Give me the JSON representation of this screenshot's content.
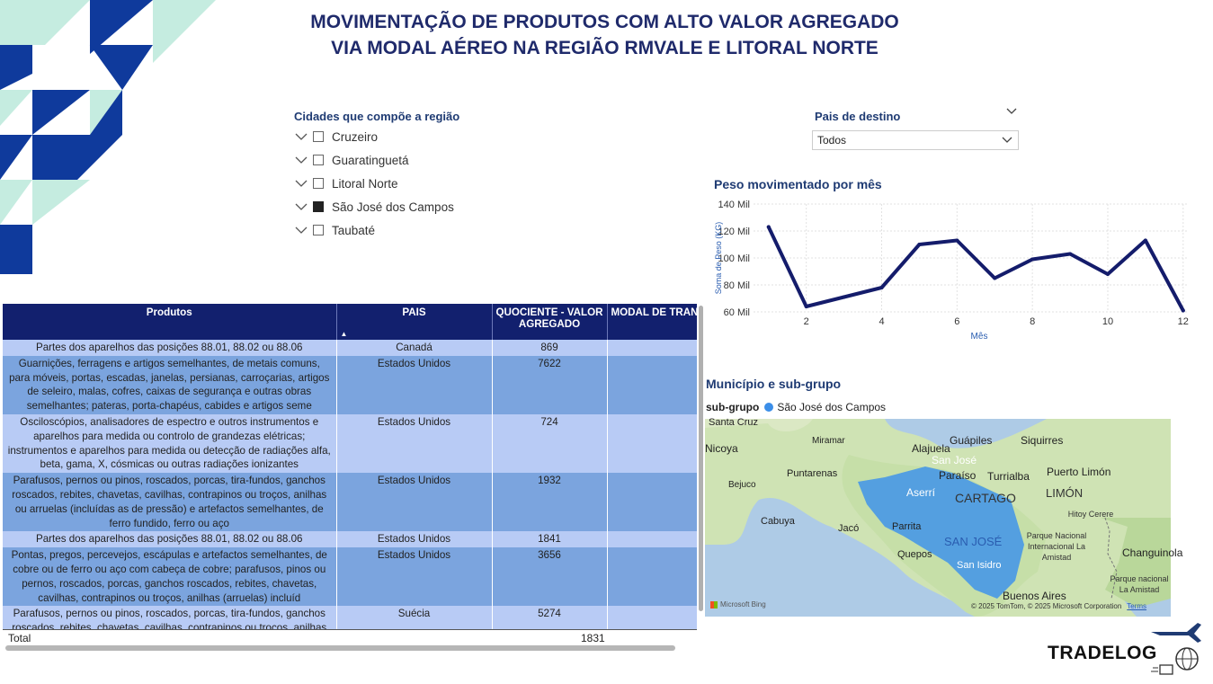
{
  "title": {
    "line1": "MOVIMENTAÇÃO DE PRODUTOS COM ALTO VALOR AGREGADO",
    "line2": "VIA MODAL AÉREO NA REGIÃO RMVALE E LITORAL NORTE"
  },
  "city_slicer": {
    "title": "Cidades que compõe a região",
    "items": [
      {
        "label": "Cruzeiro",
        "checked": false
      },
      {
        "label": "Guaratinguetá",
        "checked": false
      },
      {
        "label": "Litoral Norte",
        "checked": false
      },
      {
        "label": "São José dos Campos",
        "checked": true
      },
      {
        "label": "Taubaté",
        "checked": false
      }
    ]
  },
  "country_slicer": {
    "title": "Pais de destino",
    "selected": "Todos"
  },
  "line_chart": {
    "title": "Peso movimentado por mês",
    "ylabel": "Soma de Peso (KG)",
    "xlabel": "Mês",
    "color": "#141c6b"
  },
  "chart_data": {
    "type": "line",
    "title": "Peso movimentado por mês",
    "xlabel": "Mês",
    "ylabel": "Soma de Peso (KG)",
    "x": [
      1,
      2,
      3,
      4,
      5,
      6,
      7,
      8,
      9,
      10,
      11,
      12
    ],
    "values": [
      123,
      64,
      71,
      78,
      110,
      113,
      85,
      99,
      103,
      88,
      113,
      61
    ],
    "ylim": [
      60,
      140
    ],
    "xticks": [
      "2",
      "4",
      "6",
      "8",
      "10",
      "12"
    ],
    "yticks": [
      "140 Mil",
      "120 Mil",
      "100 Mil",
      "80 Mil",
      "60 Mil"
    ],
    "grid": true
  },
  "map_visual": {
    "title": "Município e sub-grupo",
    "legend_label": "sub-grupo",
    "legend_item": "São José dos Campos",
    "attribution": "© 2025 TomTom, © 2025 Microsoft Corporation",
    "terms": "Terms",
    "provider": "Microsoft Bing",
    "places": [
      "Santa Cruz",
      "Miramar",
      "Alajuela",
      "Guápiles",
      "Siquirres",
      "Nicoya",
      "San José",
      "Puntarenas",
      "Paraíso",
      "Turrialba",
      "Puerto Limón",
      "Bejuco",
      "Aserrí",
      "CARTAGO",
      "LIMÓN",
      "Hitoy Cerere",
      "Cabuya",
      "Jacó",
      "Parrita",
      "SAN JOSÉ",
      "Parque Nacional Internacional La Amistad",
      "Quepos",
      "San Isidro",
      "Changuinola",
      "Buenos Aires",
      "Parque nacional La Amistad"
    ]
  },
  "table": {
    "headers": [
      "Produtos",
      "PAIS",
      "QUOCIENTE - VALOR AGREGADO",
      "MODAL DE TRAN"
    ],
    "rows": [
      {
        "produto": "Partes dos aparelhos das posições 88.01, 88.02 ou 88.06",
        "pais": "Canadá",
        "quociente": "869"
      },
      {
        "produto": "Guarnições, ferragens e artigos semelhantes, de metais comuns, para móveis, portas, escadas, janelas, persianas, carroçarias, artigos de seleiro, malas, cofres, caixas de segurança e outras obras semelhantes; pateras, porta-chapéus, cabides e artigos seme",
        "pais": "Estados Unidos",
        "quociente": "7622"
      },
      {
        "produto": "Osciloscópios, analisadores de espectro e outros instrumentos e aparelhos para medida ou controlo de grandezas elétricas; instrumentos e aparelhos para medida ou detecção de radiações alfa, beta, gama, X, cósmicas ou outras radiações ionizantes",
        "pais": "Estados Unidos",
        "quociente": "724"
      },
      {
        "produto": "Parafusos, pernos ou pinos, roscados, porcas, tira-fundos, ganchos roscados, rebites, chavetas, cavilhas, contrapinos ou troços, anilhas ou arruelas (incluídas as de pressão) e artefactos semelhantes, de ferro fundido, ferro ou aço",
        "pais": "Estados Unidos",
        "quociente": "1932"
      },
      {
        "produto": "Partes dos aparelhos das posições 88.01, 88.02 ou 88.06",
        "pais": "Estados Unidos",
        "quociente": "1841"
      },
      {
        "produto": "Pontas, pregos, percevejos, escápulas e artefactos semelhantes, de cobre ou de ferro ou aço com cabeça de cobre; parafusos, pinos ou pernos, roscados, porcas, ganchos roscados, rebites, chavetas, cavilhas, contrapinos ou troços, anilhas (arruelas) incluíd",
        "pais": "Estados Unidos",
        "quociente": "3656"
      },
      {
        "produto": "Parafusos, pernos ou pinos, roscados, porcas, tira-fundos, ganchos roscados, rebites, chavetas, cavilhas, contrapinos ou troços, anilhas",
        "pais": "Suécia",
        "quociente": "5274"
      }
    ],
    "total_label": "Total",
    "total_value": "1831"
  },
  "logo": {
    "text": "TRADELOG"
  }
}
